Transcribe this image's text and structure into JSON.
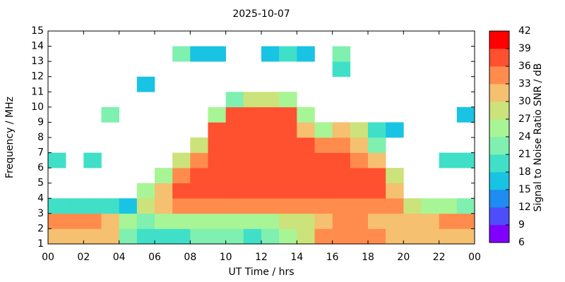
{
  "chart_data": {
    "type": "heatmap",
    "title": "2025-10-07",
    "xlabel": "UT Time / hrs",
    "ylabel": "Frequency / MHz",
    "x": [
      0.5,
      1.5,
      2.5,
      3.5,
      4.5,
      5.5,
      6.5,
      7.5,
      8.5,
      9.5,
      10.5,
      11.5,
      12.5,
      13.5,
      14.5,
      15.5,
      16.5,
      17.5,
      18.5,
      19.5,
      20.5,
      21.5,
      22.5,
      23.5
    ],
    "y": [
      1.5,
      2.5,
      3.5,
      4.5,
      5.5,
      6.5,
      7.5,
      8.5,
      9.5,
      10.5,
      11.5,
      12.5,
      13.5,
      14.5
    ],
    "z": [
      [
        30,
        30,
        30,
        30,
        22,
        18,
        20,
        20,
        21,
        21,
        21,
        20,
        22,
        24,
        27,
        33,
        35,
        35,
        33,
        30,
        30,
        30,
        30,
        30
      ],
      [
        33,
        33,
        33,
        30,
        24,
        22,
        24,
        24,
        24,
        24,
        24,
        24,
        25,
        27,
        27,
        30,
        33,
        33,
        30,
        30,
        30,
        30,
        33,
        33
      ],
      [
        20,
        18,
        18,
        18,
        16,
        27,
        30,
        33,
        33,
        33,
        33,
        33,
        33,
        33,
        33,
        33,
        33,
        33,
        33,
        33,
        27,
        24,
        24,
        22
      ],
      [
        null,
        null,
        null,
        null,
        null,
        24,
        30,
        36,
        36,
        36,
        36,
        36,
        36,
        36,
        36,
        36,
        36,
        36,
        36,
        30,
        null,
        null,
        null,
        null
      ],
      [
        null,
        null,
        null,
        null,
        null,
        null,
        24,
        33,
        36,
        38,
        38,
        38,
        38,
        38,
        38,
        38,
        38,
        36,
        36,
        27,
        null,
        null,
        null,
        null
      ],
      [
        20,
        null,
        18,
        null,
        null,
        null,
        null,
        27,
        33,
        36,
        36,
        36,
        36,
        36,
        36,
        36,
        36,
        33,
        30,
        null,
        null,
        null,
        18,
        18
      ],
      [
        null,
        null,
        null,
        null,
        null,
        null,
        null,
        null,
        27,
        36,
        38,
        38,
        38,
        38,
        36,
        33,
        33,
        30,
        22,
        null,
        null,
        null,
        null,
        null
      ],
      [
        null,
        null,
        null,
        null,
        null,
        null,
        null,
        null,
        null,
        36,
        38,
        38,
        38,
        36,
        30,
        24,
        30,
        27,
        20,
        15,
        null,
        null,
        null,
        null
      ],
      [
        null,
        null,
        null,
        21,
        null,
        null,
        null,
        null,
        null,
        24,
        36,
        38,
        38,
        36,
        24,
        null,
        null,
        null,
        null,
        null,
        null,
        null,
        null,
        15
      ],
      [
        null,
        null,
        null,
        null,
        null,
        null,
        null,
        null,
        null,
        null,
        22,
        27,
        27,
        24,
        null,
        null,
        null,
        null,
        null,
        null,
        null,
        null,
        null,
        null
      ],
      [
        null,
        null,
        null,
        null,
        null,
        15,
        null,
        null,
        null,
        null,
        null,
        null,
        null,
        null,
        null,
        null,
        null,
        null,
        null,
        null,
        null,
        null,
        null,
        null
      ],
      [
        null,
        null,
        null,
        null,
        null,
        null,
        null,
        null,
        null,
        null,
        null,
        null,
        null,
        null,
        null,
        null,
        20,
        null,
        null,
        null,
        null,
        null,
        null,
        null
      ],
      [
        null,
        null,
        null,
        null,
        null,
        null,
        null,
        21,
        15,
        15,
        null,
        null,
        15,
        18,
        15,
        null,
        21,
        null,
        null,
        null,
        null,
        null,
        null,
        null
      ],
      [
        null,
        null,
        null,
        null,
        null,
        null,
        null,
        null,
        null,
        null,
        null,
        null,
        null,
        null,
        null,
        null,
        null,
        null,
        null,
        null,
        null,
        null,
        null,
        null
      ]
    ],
    "xlim": [
      0,
      24
    ],
    "xticks": [
      {
        "value": 0,
        "label": "00"
      },
      {
        "value": 2,
        "label": "02"
      },
      {
        "value": 4,
        "label": "04"
      },
      {
        "value": 6,
        "label": "06"
      },
      {
        "value": 8,
        "label": "08"
      },
      10,
      12,
      14,
      16,
      18,
      20,
      22,
      {
        "value": 24,
        "label": "00"
      }
    ],
    "ylim": [
      1,
      15
    ],
    "yticks": [
      1,
      2,
      3,
      4,
      5,
      6,
      7,
      8,
      9,
      10,
      11,
      12,
      13,
      14,
      15
    ],
    "colorbar": {
      "label": "Signal to Noise Ratio SNR / dB",
      "ticks": [
        6,
        9,
        12,
        15,
        18,
        21,
        24,
        27,
        30,
        33,
        36,
        39,
        42
      ],
      "colors": [
        "#7f00ff",
        "#4d4dfc",
        "#1e8cf0",
        "#19c3e3",
        "#40e0c8",
        "#7ff0b0",
        "#a8f596",
        "#cce27a",
        "#f5c070",
        "#ff8c4c",
        "#ff5030",
        "#ff0000"
      ]
    }
  }
}
